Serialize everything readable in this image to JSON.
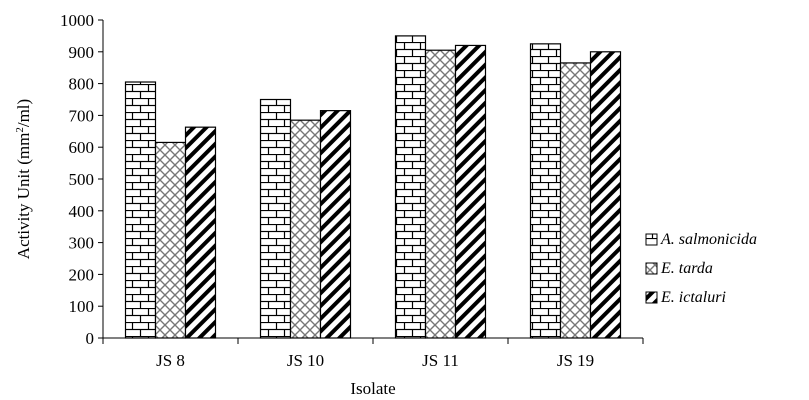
{
  "chart_data": {
    "type": "bar",
    "title": "",
    "xlabel": "Isolate",
    "ylabel_main": "Activity Unit (mm",
    "ylabel_sup": "2",
    "ylabel_end": "/ml)",
    "categories": [
      "JS 8",
      "JS 10",
      "JS 11",
      "JS 19"
    ],
    "y_ticks": [
      "0",
      "100",
      "200",
      "300",
      "400",
      "500",
      "600",
      "700",
      "800",
      "900",
      "1000"
    ],
    "ylim": [
      0,
      1000
    ],
    "grid": false,
    "legend_position": "right",
    "series": [
      {
        "name": "A. salmonicida",
        "pattern": "brick",
        "values": [
          805,
          750,
          950,
          925
        ]
      },
      {
        "name": "E. tarda",
        "pattern": "crosshatch",
        "values": [
          615,
          685,
          905,
          865
        ]
      },
      {
        "name": "E. ictaluri",
        "pattern": "diagonal",
        "values": [
          663,
          715,
          920,
          900
        ]
      }
    ]
  }
}
